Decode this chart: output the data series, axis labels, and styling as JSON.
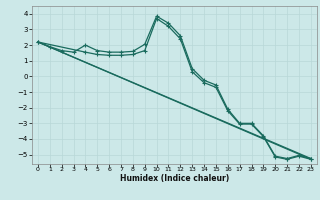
{
  "xlabel": "Humidex (Indice chaleur)",
  "xlim": [
    -0.5,
    23.5
  ],
  "ylim": [
    -5.6,
    4.5
  ],
  "xticks": [
    0,
    1,
    2,
    3,
    4,
    5,
    6,
    7,
    8,
    9,
    10,
    11,
    12,
    13,
    14,
    15,
    16,
    17,
    18,
    19,
    20,
    21,
    22,
    23
  ],
  "yticks": [
    -5,
    -4,
    -3,
    -2,
    -1,
    0,
    1,
    2,
    3,
    4
  ],
  "bg_color": "#cce8e8",
  "line_color": "#1a6b5e",
  "grid_color": "#b8d8d8",
  "line1_x": [
    0,
    1,
    2,
    3,
    4,
    5,
    6,
    7,
    8,
    9,
    10,
    11,
    12,
    13,
    14,
    15,
    16,
    17,
    18,
    19,
    20,
    21,
    22,
    23
  ],
  "line1_y": [
    2.2,
    1.9,
    1.65,
    1.55,
    2.0,
    1.65,
    1.55,
    1.55,
    1.6,
    2.05,
    3.85,
    3.4,
    2.6,
    0.5,
    -0.25,
    -0.55,
    -2.1,
    -3.0,
    -3.0,
    -3.8,
    -5.1,
    -5.25,
    -5.05,
    -5.25
  ],
  "line2_x": [
    0,
    4,
    5,
    6,
    7,
    8,
    9,
    10,
    11,
    12,
    13,
    14,
    15,
    16,
    17,
    18,
    19,
    20,
    21,
    22,
    23
  ],
  "line2_y": [
    2.2,
    1.55,
    1.4,
    1.35,
    1.35,
    1.4,
    1.65,
    3.7,
    3.2,
    2.4,
    0.3,
    -0.4,
    -0.7,
    -2.2,
    -3.05,
    -3.05,
    -3.85,
    -5.15,
    -5.3,
    -5.1,
    -5.3
  ],
  "line3_x": [
    0,
    23
  ],
  "line3_y": [
    2.2,
    -5.25
  ],
  "line4_x": [
    0,
    23
  ],
  "line4_y": [
    2.2,
    -5.3
  ]
}
